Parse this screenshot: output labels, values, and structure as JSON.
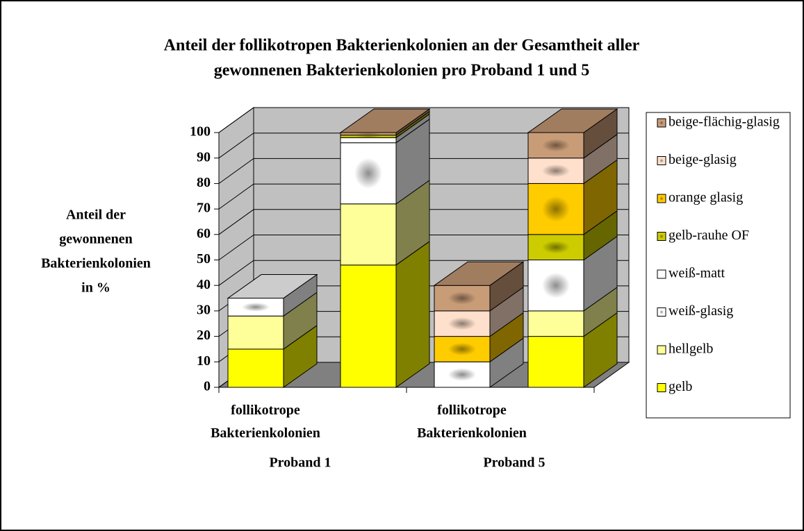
{
  "chart_data": {
    "type": "bar3d_stacked",
    "title": [
      "Anteil der follikotropen Bakterienkolonien an der Gesamtheit aller",
      "gewonnenen Bakterienkolonien pro Proband 1 und 5"
    ],
    "y_label": [
      "Anteil der",
      "gewonnenen",
      "Bakterienkolonien",
      "in %"
    ],
    "categories": [
      "follikotrope Bakterienkolonien",
      null,
      "follikotrope Bakterienkolonien",
      null
    ],
    "groups": [
      "Proband 1",
      "Proband 5"
    ],
    "ylim": [
      0,
      100
    ],
    "yticks": [
      0,
      10,
      20,
      30,
      40,
      50,
      60,
      70,
      80,
      90,
      100
    ],
    "grid": true,
    "legend": "right",
    "series": [
      {
        "name": "gelb",
        "color": "#ffff00",
        "values": [
          15,
          48,
          0,
          20
        ]
      },
      {
        "name": "hellgelb",
        "color": "#ffff99",
        "values": [
          13,
          24,
          0,
          10
        ]
      },
      {
        "name": "weiß-glasig",
        "color": "#ffffff",
        "values": [
          7,
          24,
          10,
          20
        ]
      },
      {
        "name": "weiß-matt",
        "color": "#fefefe",
        "values": [
          0,
          2,
          0,
          0
        ]
      },
      {
        "name": "gelb-rauhe OF",
        "color": "#cccc00",
        "values": [
          0,
          1,
          0,
          10
        ]
      },
      {
        "name": "orange glasig",
        "color": "#ffcc00",
        "values": [
          0,
          0,
          10,
          20
        ]
      },
      {
        "name": "beige-glasig",
        "color": "#ffe0cc",
        "values": [
          0,
          0,
          10,
          10
        ]
      },
      {
        "name": "beige-flächig-glasig",
        "color": "#c99c78",
        "values": [
          0,
          1,
          10,
          10
        ]
      }
    ]
  }
}
